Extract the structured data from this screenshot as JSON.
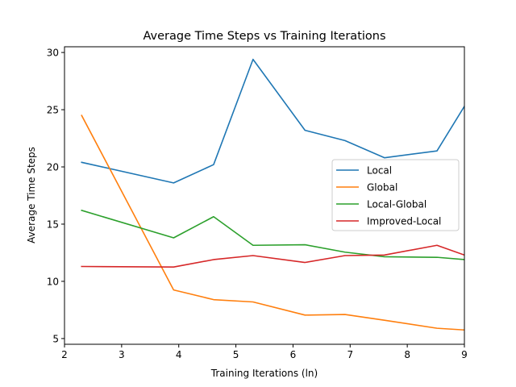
{
  "chart_data": {
    "type": "line",
    "title": "Average Time Steps vs Training Iterations",
    "xlabel": "Training Iterations (ln)",
    "ylabel": "Average Time Steps",
    "xlim": [
      2,
      9
    ],
    "ylim": [
      4.5,
      30.5
    ],
    "xticks": [
      2,
      3,
      4,
      5,
      6,
      7,
      8,
      9
    ],
    "yticks": [
      5,
      10,
      15,
      20,
      25,
      30
    ],
    "grid": false,
    "legend_position": "center-right",
    "x": [
      2.3,
      3.91,
      4.61,
      5.3,
      6.21,
      6.91,
      7.6,
      8.52,
      9.0
    ],
    "series": [
      {
        "name": "Local",
        "color": "#1f77b4",
        "values": [
          20.4,
          18.6,
          20.2,
          29.4,
          23.2,
          22.3,
          20.8,
          21.4,
          25.3
        ]
      },
      {
        "name": "Global",
        "color": "#ff7f0e",
        "values": [
          24.5,
          9.25,
          8.4,
          8.2,
          7.05,
          7.1,
          6.6,
          5.9,
          5.75
        ]
      },
      {
        "name": "Local-Global",
        "color": "#2ca02c",
        "values": [
          16.2,
          13.8,
          15.65,
          13.15,
          13.2,
          12.55,
          12.15,
          12.1,
          11.9
        ]
      },
      {
        "name": "Improved-Local",
        "color": "#d62728",
        "values": [
          11.3,
          11.25,
          11.9,
          12.25,
          11.65,
          12.25,
          12.3,
          13.15,
          12.3
        ]
      }
    ]
  }
}
